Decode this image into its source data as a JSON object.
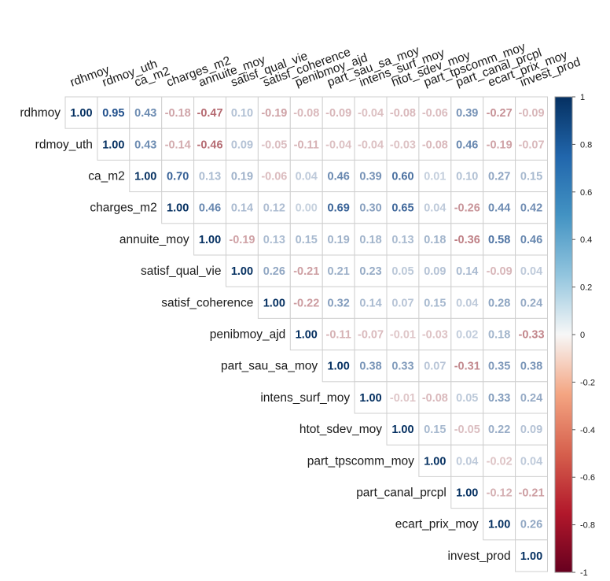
{
  "chart_data": {
    "type": "heatmap",
    "variables": [
      "rdhmoy",
      "rdmoy_uth",
      "ca_m2",
      "charges_m2",
      "annuite_moy",
      "satisf_qual_vie",
      "satisf_coherence",
      "penibmoy_ajd",
      "part_sau_sa_moy",
      "intens_surf_moy",
      "htot_sdev_moy",
      "part_tpscomm_moy",
      "part_canal_prcpl",
      "ecart_prix_moy",
      "invest_prod"
    ],
    "matrix": [
      [
        "1.00",
        "0.95",
        "0.43",
        "-0.18",
        "-0.47",
        "0.10",
        "-0.19",
        "-0.08",
        "-0.09",
        "-0.04",
        "-0.08",
        "-0.06",
        "0.39",
        "-0.27",
        "-0.09"
      ],
      [
        "1.00",
        "0.43",
        "-0.14",
        "-0.46",
        "0.09",
        "-0.05",
        "-0.11",
        "-0.04",
        "-0.04",
        "-0.03",
        "-0.08",
        "0.46",
        "-0.19",
        "-0.07"
      ],
      [
        "1.00",
        "0.70",
        "0.13",
        "0.19",
        "-0.06",
        "0.04",
        "0.46",
        "0.39",
        "0.60",
        "0.01",
        "0.10",
        "0.27",
        "0.15"
      ],
      [
        "1.00",
        "0.46",
        "0.14",
        "0.12",
        "0.00",
        "0.69",
        "0.30",
        "0.65",
        "0.04",
        "-0.26",
        "0.44",
        "0.42"
      ],
      [
        "1.00",
        "-0.19",
        "0.13",
        "0.15",
        "0.19",
        "0.18",
        "0.13",
        "0.18",
        "-0.36",
        "0.58",
        "0.46"
      ],
      [
        "1.00",
        "0.26",
        "-0.21",
        "0.21",
        "0.23",
        "0.05",
        "0.09",
        "0.14",
        "-0.09",
        "0.04"
      ],
      [
        "1.00",
        "-0.22",
        "0.32",
        "0.14",
        "0.07",
        "0.15",
        "0.04",
        "0.28",
        "0.24"
      ],
      [
        "1.00",
        "-0.11",
        "-0.07",
        "-0.01",
        "-0.03",
        "0.02",
        "0.18",
        "-0.33"
      ],
      [
        "1.00",
        "0.38",
        "0.33",
        "0.07",
        "-0.31",
        "0.35",
        "0.38"
      ],
      [
        "1.00",
        "-0.01",
        "-0.08",
        "0.05",
        "0.33",
        "0.24"
      ],
      [
        "1.00",
        "0.15",
        "-0.05",
        "0.22",
        "0.09"
      ],
      [
        "1.00",
        "0.04",
        "-0.02",
        "0.04"
      ],
      [
        "1.00",
        "-0.12",
        "-0.21"
      ],
      [
        "1.00",
        "0.26"
      ],
      [
        "1.00"
      ]
    ],
    "colorbar": {
      "ticks": [
        "1",
        "0.8",
        "0.6",
        "0.4",
        "0.2",
        "0",
        "-0.2",
        "-0.4",
        "-0.6",
        "-0.8",
        "-1"
      ],
      "range": [
        -1,
        1
      ],
      "high_color": "#053061",
      "mid_color": "#f7f7f7",
      "low_color": "#67001f"
    }
  }
}
